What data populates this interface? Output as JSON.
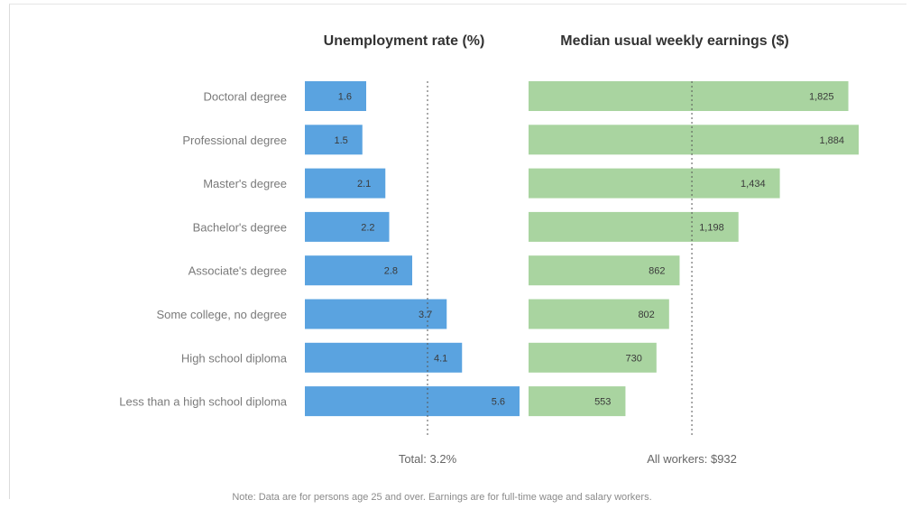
{
  "chart_data": [
    {
      "type": "bar",
      "orientation": "horizontal",
      "title": "Unemployment rate (%)",
      "categories": [
        "Doctoral degree",
        "Professional degree",
        "Master's degree",
        "Bachelor's degree",
        "Associate's degree",
        "Some college, no degree",
        "High school diploma",
        "Less than a high school diploma"
      ],
      "values": [
        1.6,
        1.5,
        2.1,
        2.2,
        2.8,
        3.7,
        4.1,
        5.6
      ],
      "value_labels": [
        "1.6",
        "1.5",
        "2.1",
        "2.2",
        "2.8",
        "3.7",
        "4.1",
        "5.6"
      ],
      "reference_value": 3.2,
      "reference_label": "Total: 3.2%",
      "xlim": [
        0,
        5.6
      ],
      "color": "#5aa3e0"
    },
    {
      "type": "bar",
      "orientation": "horizontal",
      "title": "Median usual weekly earnings ($)",
      "categories": [
        "Doctoral degree",
        "Professional degree",
        "Master's degree",
        "Bachelor's degree",
        "Associate's degree",
        "Some college, no degree",
        "High school diploma",
        "Less than a high school diploma"
      ],
      "values": [
        1825,
        1884,
        1434,
        1198,
        862,
        802,
        730,
        553
      ],
      "value_labels": [
        "1,825",
        "1,884",
        "1,434",
        "1,198",
        "862",
        "802",
        "730",
        "553"
      ],
      "reference_value": 932,
      "reference_label": "All workers: $932",
      "xlim": [
        0,
        1884
      ],
      "color": "#a9d4a0"
    }
  ],
  "note": "Note: Data are for persons age 25 and over. Earnings are for full-time wage and salary workers."
}
